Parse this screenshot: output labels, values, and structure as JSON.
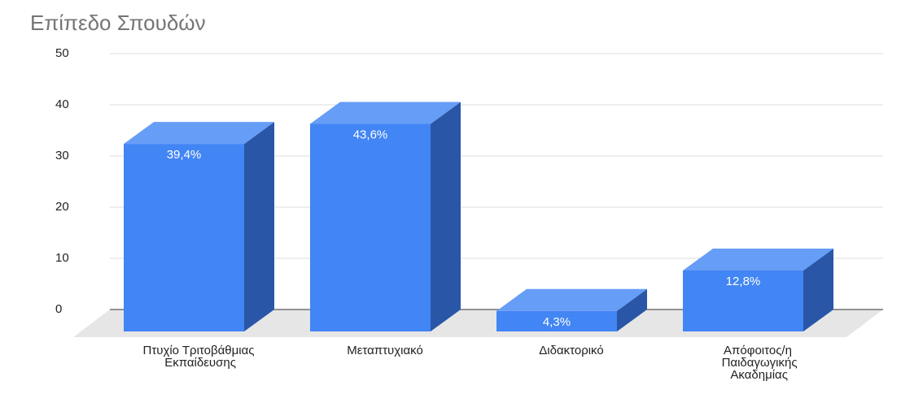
{
  "chart_data": {
    "type": "bar3d",
    "title": "Επίπεδο Σπουδών",
    "categories": [
      "Πτυχίο Τριτοβάθμιας Εκπαίδευσης",
      "Μεταπτυχιακό",
      "Διδακτορικό",
      "Απόφοιτος/η Παιδαγωγικής Ακαδημίας"
    ],
    "values": [
      39.4,
      43.6,
      4.3,
      12.8
    ],
    "value_labels": [
      "39,4%",
      "43,6%",
      "4,3%",
      "12,8%"
    ],
    "color": "#4285f4",
    "ylim": [
      0,
      50
    ],
    "yticks": [
      0,
      10,
      20,
      30,
      40,
      50
    ],
    "grid": true
  }
}
